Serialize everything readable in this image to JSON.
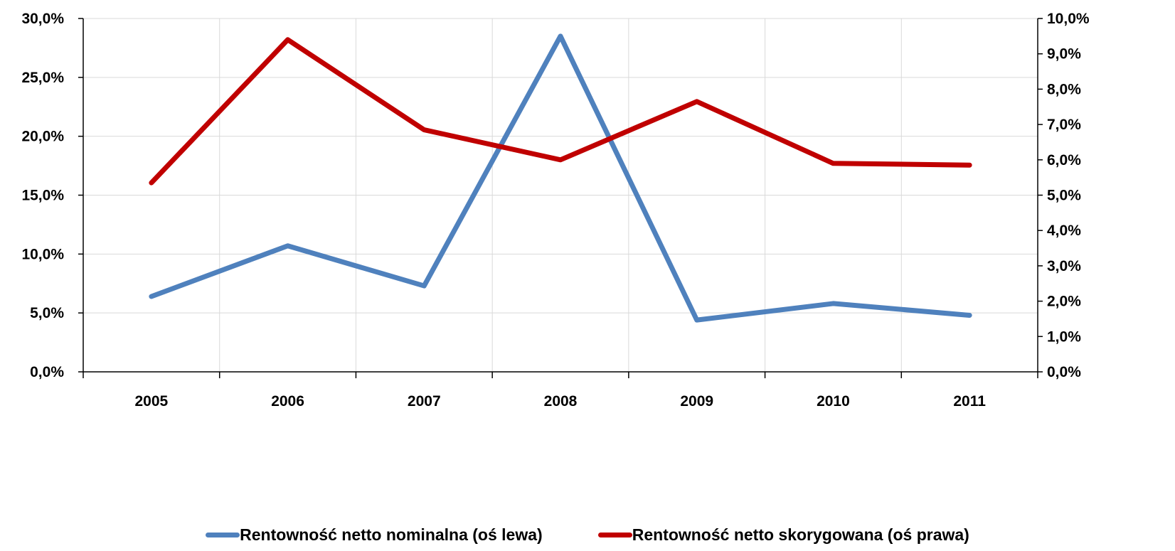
{
  "chart_data": {
    "type": "line",
    "categories": [
      "2005",
      "2006",
      "2007",
      "2008",
      "2009",
      "2010",
      "2011"
    ],
    "series": [
      {
        "name": "Rentowność netto nominalna (oś lewa)",
        "axis": "left",
        "color": "#4F81BD",
        "values": [
          6.4,
          10.7,
          7.3,
          28.5,
          4.4,
          5.8,
          4.8
        ]
      },
      {
        "name": "Rentowność netto skorygowana (oś prawa)",
        "axis": "right",
        "color": "#C00000",
        "values": [
          5.35,
          9.4,
          6.85,
          6.0,
          7.65,
          5.9,
          5.85
        ]
      }
    ],
    "y_left": {
      "ylim": [
        0,
        30
      ],
      "ticks": [
        "0,0%",
        "5,0%",
        "10,0%",
        "15,0%",
        "20,0%",
        "25,0%",
        "30,0%"
      ]
    },
    "y_right": {
      "ylim": [
        0,
        10
      ],
      "ticks": [
        "0,0%",
        "1,0%",
        "2,0%",
        "3,0%",
        "4,0%",
        "5,0%",
        "6,0%",
        "7,0%",
        "8,0%",
        "9,0%",
        "10,0%"
      ]
    },
    "grid": "vertical",
    "legend_position": "bottom"
  }
}
